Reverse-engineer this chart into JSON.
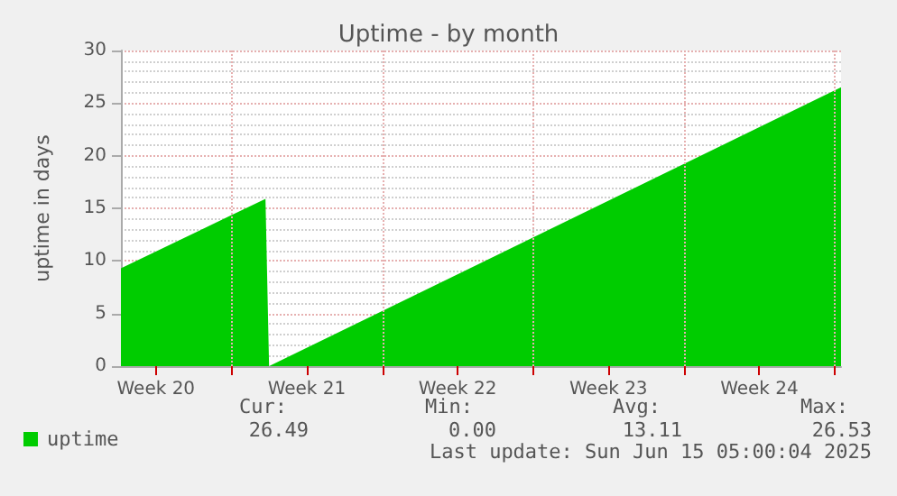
{
  "chart_data": {
    "type": "area",
    "title": "Uptime - by month",
    "ylabel": "uptime in days",
    "x": [
      "2025-05-13T21:00",
      "2025-05-20T14:00",
      "2025-05-20T18:00",
      "2025-06-16T07:00"
    ],
    "series": [
      {
        "name": "uptime",
        "color": "#00cc00",
        "values": [
          9.3,
          15.9,
          0,
          26.5
        ]
      }
    ],
    "xlim": [
      "2025-05-13T21:00",
      "2025-06-16T07:00"
    ],
    "xticks": [
      {
        "value": "2025-05-15T12:00",
        "label": "Week 20"
      },
      {
        "value": "2025-05-19",
        "label": null
      },
      {
        "value": "2025-05-22T12:00",
        "label": "Week 21"
      },
      {
        "value": "2025-05-26",
        "label": null
      },
      {
        "value": "2025-05-29T12:00",
        "label": "Week 22"
      },
      {
        "value": "2025-06-02",
        "label": null
      },
      {
        "value": "2025-06-05T12:00",
        "label": "Week 23"
      },
      {
        "value": "2025-06-09",
        "label": null
      },
      {
        "value": "2025-06-12T12:00",
        "label": "Week 24"
      },
      {
        "value": "2025-06-16",
        "label": null
      }
    ],
    "ylim": [
      0,
      30
    ],
    "yticks": [
      0,
      5,
      10,
      15,
      20,
      25,
      30
    ],
    "grid": true,
    "legend": "bottom left",
    "annotations": [
      "Cur:",
      "Min:",
      "Avg:",
      "Max:",
      "26.49",
      "0.00",
      "13.11",
      "26.53",
      "Last update: Sun Jun 15 05:00:04 2025"
    ]
  }
}
